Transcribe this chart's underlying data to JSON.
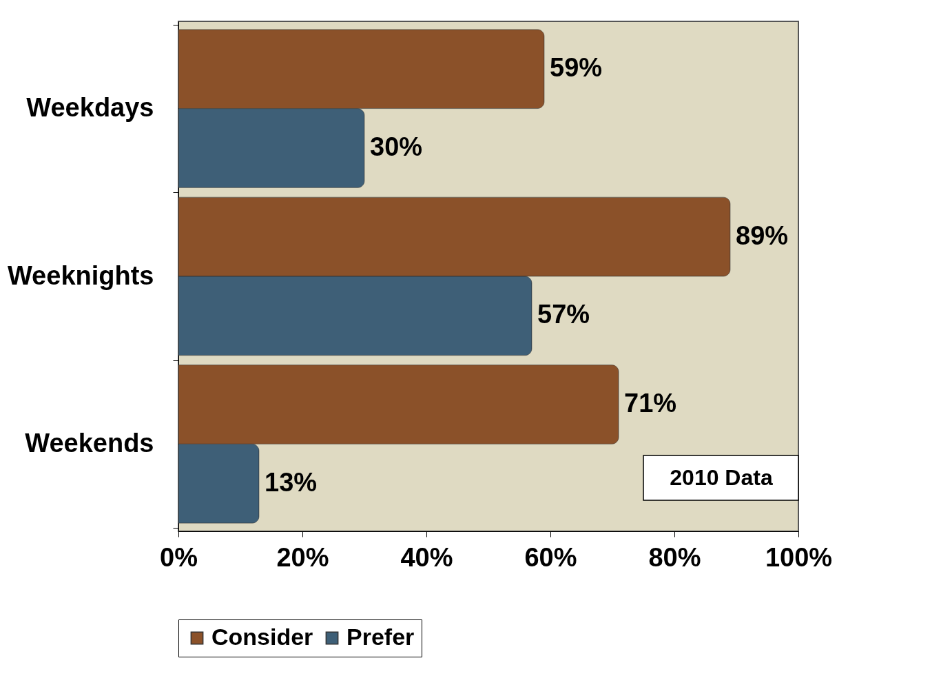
{
  "chart_data": {
    "type": "bar",
    "orientation": "horizontal",
    "categories": [
      "Weekdays",
      "Weeknights",
      "Weekends"
    ],
    "series": [
      {
        "name": "Consider",
        "color": "#8b5129",
        "values": [
          59,
          89,
          71
        ],
        "value_labels": [
          "59%",
          "89%",
          "71%"
        ]
      },
      {
        "name": "Prefer",
        "color": "#3e5f77",
        "values": [
          30,
          57,
          13
        ],
        "value_labels": [
          "30%",
          "57%",
          "13%"
        ]
      }
    ],
    "xlim": [
      0,
      100
    ],
    "xticks": [
      {
        "value": 0,
        "label": "0%"
      },
      {
        "value": 20,
        "label": "20%"
      },
      {
        "value": 40,
        "label": "40%"
      },
      {
        "value": 60,
        "label": "60%"
      },
      {
        "value": 80,
        "label": "80%"
      },
      {
        "value": 100,
        "label": "100%"
      }
    ],
    "annotations": [
      "2010 Data"
    ],
    "legend": "bottom",
    "grid": false
  }
}
